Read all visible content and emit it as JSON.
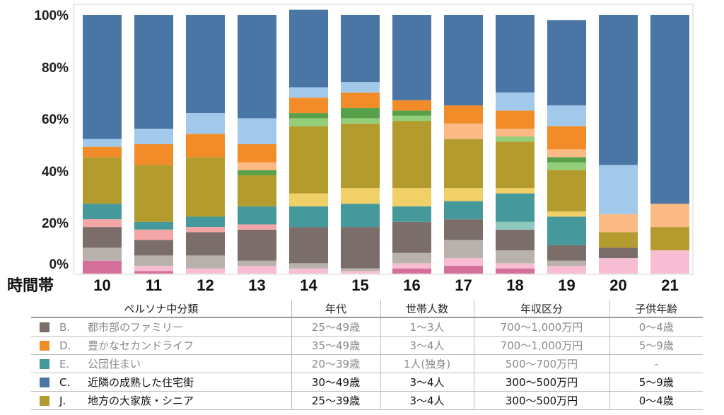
{
  "chart_data": {
    "type": "stacked_bar_100",
    "xlabel": "時間帯",
    "categories": [
      "10",
      "11",
      "12",
      "13",
      "14",
      "15",
      "16",
      "17",
      "18",
      "19",
      "20",
      "21"
    ],
    "yticks": [
      "0%",
      "20%",
      "40%",
      "60%",
      "80%",
      "100%"
    ],
    "ylim": [
      0,
      100
    ],
    "grid": false,
    "series": [
      {
        "color": "#d4709a",
        "values": [
          5,
          1,
          0,
          0,
          0,
          0,
          2,
          3,
          2,
          0,
          0,
          0
        ]
      },
      {
        "color": "#f6bdd3",
        "values": [
          0,
          2,
          2,
          3,
          2,
          1,
          2,
          3,
          2,
          3,
          6,
          9
        ]
      },
      {
        "color": "#b8b1ac",
        "values": [
          5,
          4,
          5,
          2,
          2,
          1,
          4,
          7,
          5,
          2,
          0,
          0
        ]
      },
      {
        "color": "#7a6d6a",
        "values": [
          8,
          6,
          9,
          12,
          14,
          16,
          12,
          8,
          8,
          6,
          4,
          0
        ]
      },
      {
        "color": "#f4a6a6",
        "values": [
          3,
          4,
          2,
          2,
          0,
          0,
          0,
          0,
          0,
          0,
          0,
          0
        ]
      },
      {
        "color": "#8fc7bf",
        "values": [
          0,
          0,
          0,
          0,
          0,
          0,
          0,
          0,
          3,
          0,
          0,
          0
        ]
      },
      {
        "color": "#45999a",
        "values": [
          6,
          3,
          4,
          7,
          8,
          9,
          6,
          7,
          11,
          11,
          0,
          0
        ]
      },
      {
        "color": "#f2d068",
        "values": [
          0,
          0,
          0,
          0,
          5,
          6,
          7,
          5,
          2,
          2,
          0,
          0
        ]
      },
      {
        "color": "#b39b2e",
        "values": [
          18,
          22,
          23,
          12,
          26,
          25,
          26,
          19,
          18,
          16,
          6,
          9
        ]
      },
      {
        "color": "#93cf79",
        "values": [
          0,
          0,
          0,
          0,
          3,
          2,
          2,
          0,
          2,
          3,
          0,
          0
        ]
      },
      {
        "color": "#58a04a",
        "values": [
          0,
          0,
          0,
          2,
          2,
          4,
          2,
          0,
          0,
          2,
          0,
          0
        ]
      },
      {
        "color": "#fbb984",
        "values": [
          0,
          0,
          0,
          3,
          0,
          0,
          0,
          6,
          3,
          3,
          7,
          9
        ]
      },
      {
        "color": "#f28c28",
        "values": [
          4,
          8,
          9,
          7,
          6,
          6,
          4,
          7,
          7,
          9,
          0,
          0
        ]
      },
      {
        "color": "#a3c9ea",
        "values": [
          3,
          6,
          8,
          10,
          4,
          4,
          0,
          0,
          7,
          8,
          19,
          0
        ]
      },
      {
        "color": "#4a76a6",
        "values": [
          48,
          44,
          38,
          40,
          30,
          26,
          33,
          35,
          30,
          33,
          58,
          73
        ]
      }
    ]
  },
  "table": {
    "headers": [
      "ペルソナ中分類",
      "年代",
      "世帯人数",
      "年収区分",
      "子供年齢"
    ],
    "rows": [
      {
        "code": "B.",
        "name": "都市部のファミリー",
        "age": "25〜49歳",
        "size": "1〜3人",
        "income": "700〜1,000万円",
        "child": "0〜4歳",
        "color": "#7a6d6a",
        "style": "muted"
      },
      {
        "code": "D.",
        "name": "豊かなセカンドライフ",
        "age": "35〜49歳",
        "size": "3〜4人",
        "income": "700〜1,000万円",
        "child": "5〜9歳",
        "color": "#f28c28",
        "style": "muted"
      },
      {
        "code": "E.",
        "name": "公団住まい",
        "age": "20〜39歳",
        "size": "1人(独身)",
        "income": "500〜700万円",
        "child": "-",
        "color": "#45999a",
        "style": "muted"
      },
      {
        "code": "C.",
        "name": "近隣の成熟した住宅街",
        "age": "30〜49歳",
        "size": "3〜4人",
        "income": "300〜500万円",
        "child": "5〜9歳",
        "color": "#4a76a6",
        "style": "strong"
      },
      {
        "code": "J.",
        "name": "地方の大家族・シニア",
        "age": "25〜39歳",
        "size": "3〜4人",
        "income": "300〜500万円",
        "child": "0〜4歳",
        "color": "#b39b2e",
        "style": "strong"
      }
    ]
  }
}
